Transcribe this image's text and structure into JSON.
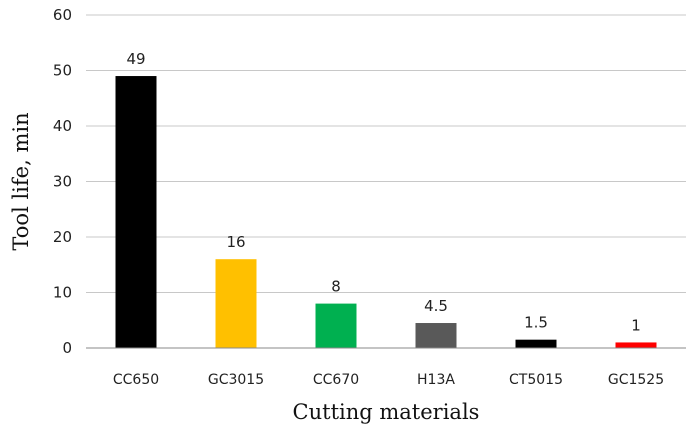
{
  "chart_data": {
    "type": "bar",
    "categories": [
      "CC650",
      "GC3015",
      "CC670",
      "H13A",
      "CT5015",
      "GC1525"
    ],
    "values": [
      49,
      16,
      8,
      4.5,
      1.5,
      1
    ],
    "data_labels": [
      "49",
      "16",
      "8",
      "4.5",
      "1.5",
      "1"
    ],
    "colors": [
      "#000000",
      "#ffc000",
      "#00b050",
      "#595959",
      "#000000",
      "#ff0000"
    ],
    "xlabel": "Cutting materials",
    "ylabel": "Tool life, min",
    "ylim": [
      0,
      60
    ],
    "yticks": [
      0,
      10,
      20,
      30,
      40,
      50,
      60
    ],
    "grid": true,
    "legend": "none"
  }
}
